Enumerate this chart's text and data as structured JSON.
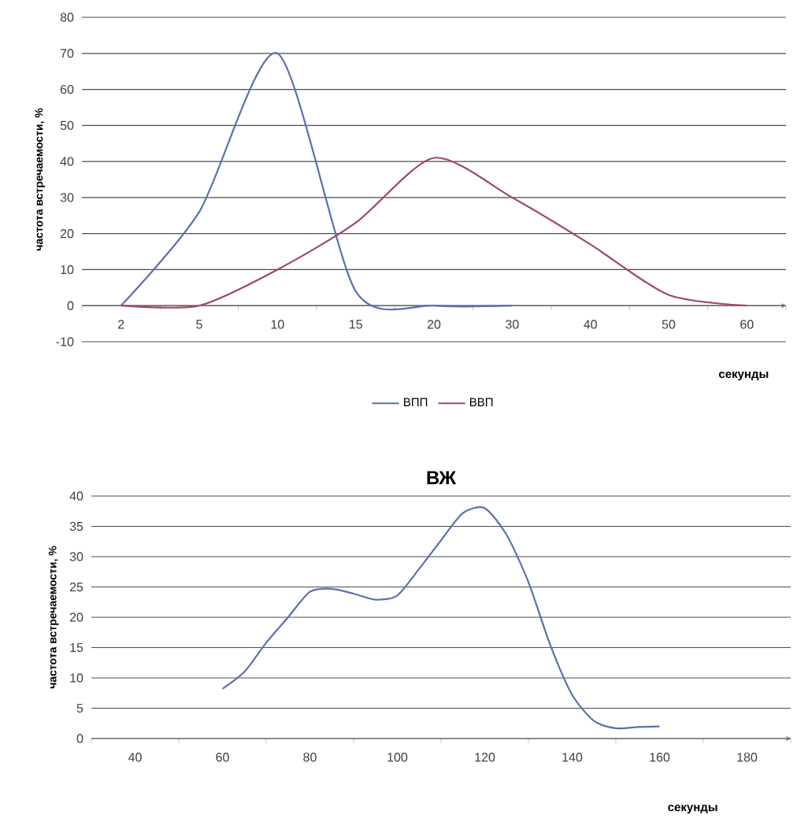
{
  "chart_data": [
    {
      "type": "line",
      "xlabel": "секунды",
      "ylabel": "частота встречаемости, %",
      "categories": [
        "2",
        "5",
        "10",
        "15",
        "20",
        "30",
        "40",
        "50",
        "60"
      ],
      "series": [
        {
          "name": "ВПП",
          "color": "#5b70ad",
          "values": [
            0,
            26,
            70,
            4,
            0,
            0,
            null,
            null,
            null
          ]
        },
        {
          "name": "ВВП",
          "color": "#a0456f",
          "values": [
            0,
            0,
            10,
            23,
            41,
            30,
            17,
            3,
            0
          ]
        }
      ],
      "ylim": [
        -10,
        80
      ],
      "yticks": [
        -10,
        0,
        10,
        20,
        30,
        40,
        50,
        60,
        70,
        80
      ],
      "grid": "y",
      "legend": "bottom"
    },
    {
      "type": "line",
      "title": "ВЖ",
      "xlabel": "секунды",
      "ylabel": "частота  встречаемости, %",
      "x": [
        60,
        65,
        70,
        75,
        80,
        85,
        90,
        95,
        100,
        105,
        110,
        115,
        120,
        125,
        130,
        135,
        140,
        145,
        150,
        155,
        160
      ],
      "series": [
        {
          "color": "#5b70ad",
          "values": [
            8.2,
            11,
            15.8,
            20,
            24.2,
            24.7,
            23.9,
            22.9,
            23.6,
            28,
            32.7,
            37.2,
            38,
            33.6,
            25.8,
            15.4,
            7.2,
            2.9,
            1.7,
            1.9,
            2.0
          ]
        }
      ],
      "xlim": [
        30,
        190
      ],
      "xticks": [
        40,
        60,
        80,
        100,
        120,
        140,
        160,
        180
      ],
      "ylim": [
        0,
        40
      ],
      "yticks": [
        0,
        5,
        10,
        15,
        20,
        25,
        30,
        35,
        40
      ],
      "grid": "y"
    }
  ]
}
